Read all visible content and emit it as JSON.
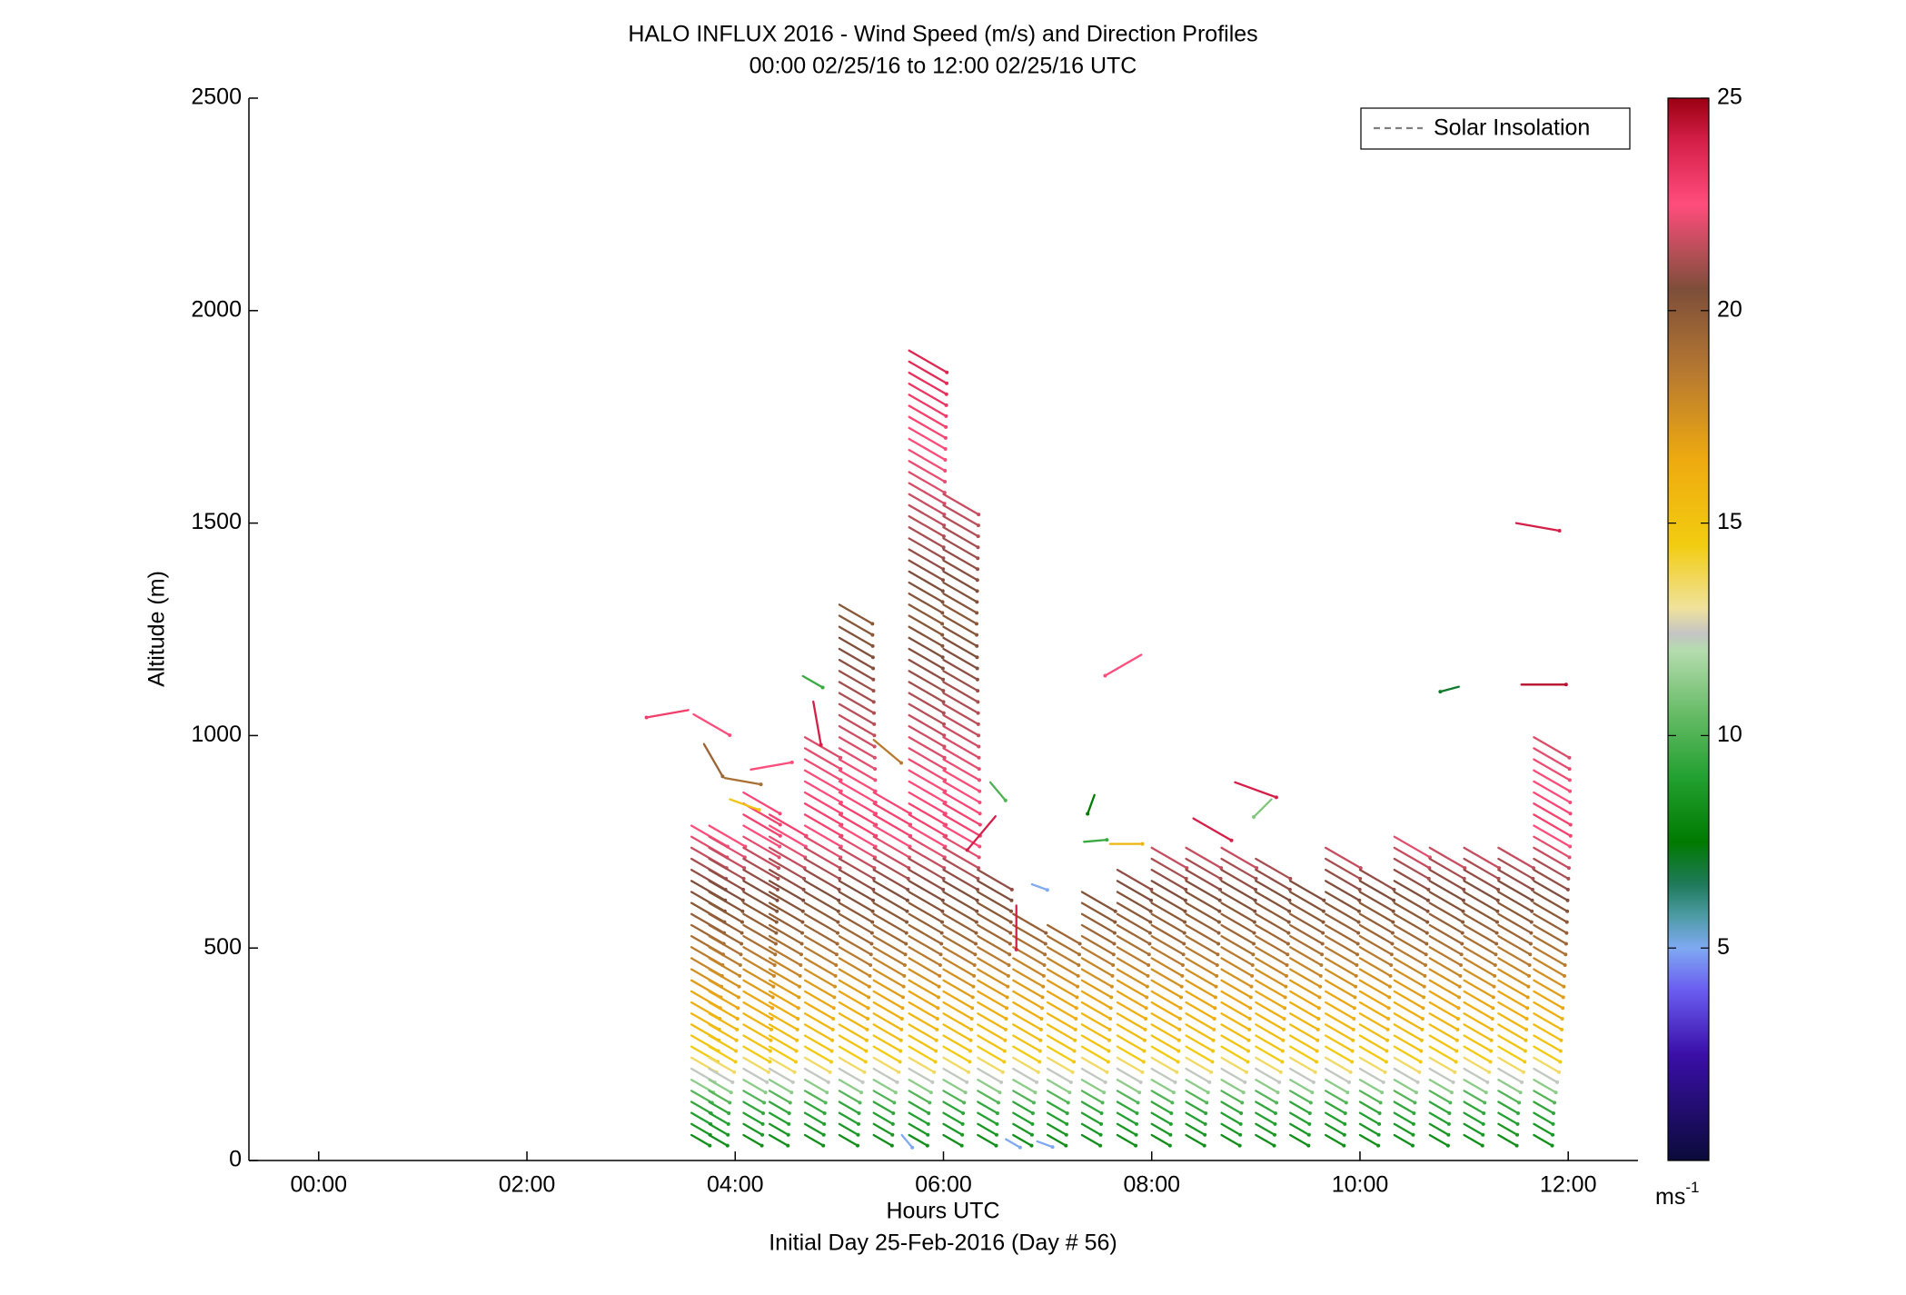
{
  "chart_data": {
    "type": "wind-profile",
    "title": "HALO INFLUX 2016 - Wind Speed (m/s) and Direction Profiles",
    "subtitle": "00:00 02/25/16 to 12:00 02/25/16  UTC",
    "xlabel": "Hours UTC",
    "xlabel2": "Initial Day 25-Feb-2016 (Day # 56)",
    "ylabel": "Altitude (m)",
    "xlim": [
      -0.67,
      12.67
    ],
    "ylim": [
      0,
      2500
    ],
    "x_ticks": [
      {
        "value": 0,
        "label": "00:00"
      },
      {
        "value": 2,
        "label": "02:00"
      },
      {
        "value": 4,
        "label": "04:00"
      },
      {
        "value": 6,
        "label": "06:00"
      },
      {
        "value": 8,
        "label": "08:00"
      },
      {
        "value": 10,
        "label": "10:00"
      },
      {
        "value": 12,
        "label": "12:00"
      }
    ],
    "y_ticks": [
      {
        "value": 0,
        "label": "0"
      },
      {
        "value": 500,
        "label": "500"
      },
      {
        "value": 1000,
        "label": "1000"
      },
      {
        "value": 1500,
        "label": "1500"
      },
      {
        "value": 2000,
        "label": "2000"
      },
      {
        "value": 2500,
        "label": "2500"
      }
    ],
    "legend": {
      "position": "top-right",
      "entries": [
        {
          "label": "Solar Insolation",
          "style": "dashed",
          "color": "#808080"
        }
      ]
    },
    "colorbar": {
      "range": [
        0,
        25
      ],
      "ticks": [
        {
          "value": 5,
          "label": "5"
        },
        {
          "value": 10,
          "label": "10"
        },
        {
          "value": 15,
          "label": "15"
        },
        {
          "value": 20,
          "label": "20"
        },
        {
          "value": 25,
          "label": "25"
        }
      ],
      "unit_label": "ms",
      "unit_exp": "-1",
      "stops": [
        {
          "v": 0,
          "c": "#0b0b3a"
        },
        {
          "v": 2.5,
          "c": "#3a0fa8"
        },
        {
          "v": 4,
          "c": "#6a5cf0"
        },
        {
          "v": 5,
          "c": "#7fa9f2"
        },
        {
          "v": 5.8,
          "c": "#4a9aa0"
        },
        {
          "v": 6.5,
          "c": "#1f7a5a"
        },
        {
          "v": 7.5,
          "c": "#007a00"
        },
        {
          "v": 9,
          "c": "#22a030"
        },
        {
          "v": 10.5,
          "c": "#66bb66"
        },
        {
          "v": 12,
          "c": "#b5dcae"
        },
        {
          "v": 12.4,
          "c": "#c4c4c4"
        },
        {
          "v": 13,
          "c": "#f0e29c"
        },
        {
          "v": 14.5,
          "c": "#f2cc10"
        },
        {
          "v": 16.5,
          "c": "#eeaa10"
        },
        {
          "v": 18.5,
          "c": "#b87a30"
        },
        {
          "v": 20.5,
          "c": "#7d4e3a"
        },
        {
          "v": 22.5,
          "c": "#ff4d7c"
        },
        {
          "v": 24,
          "c": "#d41f48"
        },
        {
          "v": 25,
          "c": "#9a0012"
        }
      ]
    },
    "wind_direction_deg": 300,
    "profile_times": [
      3.58,
      3.75,
      4.08,
      4.33,
      4.67,
      5.0,
      5.33,
      5.67,
      6.0,
      6.33,
      6.67,
      7.0,
      7.33,
      7.67,
      8.0,
      8.33,
      8.67,
      9.0,
      9.33,
      9.67,
      10.0,
      10.33,
      10.67,
      11.0,
      11.33,
      11.67
    ],
    "profile_tops": [
      790,
      800,
      870,
      830,
      1000,
      1330,
      880,
      1920,
      1580,
      700,
      590,
      560,
      650,
      700,
      760,
      740,
      740,
      720,
      660,
      740,
      700,
      780,
      740,
      740,
      740,
      1000
    ],
    "speed_profile": [
      {
        "z": 0,
        "s": 7.5
      },
      {
        "z": 150,
        "s": 9.5
      },
      {
        "z": 220,
        "s": 12.5
      },
      {
        "z": 260,
        "s": 14.5
      },
      {
        "z": 420,
        "s": 17
      },
      {
        "z": 560,
        "s": 19.5
      },
      {
        "z": 700,
        "s": 21
      },
      {
        "z": 820,
        "s": 23
      },
      {
        "z": 1300,
        "s": 20
      },
      {
        "z": 1950,
        "s": 24
      }
    ],
    "extra_vectors": [
      {
        "t": 3.55,
        "z": 1060,
        "s": 23,
        "d": 80
      },
      {
        "t": 3.6,
        "z": 1050,
        "s": 22.5,
        "d": 300
      },
      {
        "t": 3.7,
        "z": 980,
        "s": 19.5,
        "d": 330
      },
      {
        "t": 3.9,
        "z": 900,
        "s": 19,
        "d": 280
      },
      {
        "t": 4.15,
        "z": 920,
        "s": 22.5,
        "d": 260
      },
      {
        "t": 3.95,
        "z": 850,
        "s": 15,
        "d": 290
      },
      {
        "t": 4.65,
        "z": 1140,
        "s": 9.5,
        "d": 300
      },
      {
        "t": 4.75,
        "z": 1080,
        "s": 24,
        "d": 350
      },
      {
        "t": 5.33,
        "z": 990,
        "s": 18.5,
        "d": 310
      },
      {
        "t": 6.45,
        "z": 890,
        "s": 10,
        "d": 320
      },
      {
        "t": 6.5,
        "z": 810,
        "s": 24,
        "d": 40
      },
      {
        "t": 6.85,
        "z": 650,
        "s": 5,
        "d": 290
      },
      {
        "t": 6.7,
        "z": 600,
        "s": 24,
        "d": 0
      },
      {
        "t": 7.35,
        "z": 750,
        "s": 9.5,
        "d": 265
      },
      {
        "t": 7.6,
        "z": 745,
        "s": 16,
        "d": 270
      },
      {
        "t": 7.45,
        "z": 860,
        "s": 7.5,
        "d": 20
      },
      {
        "t": 7.9,
        "z": 1190,
        "s": 22.5,
        "d": 60
      },
      {
        "t": 8.4,
        "z": 805,
        "s": 24,
        "d": 300
      },
      {
        "t": 8.8,
        "z": 890,
        "s": 24,
        "d": 290
      },
      {
        "t": 9.15,
        "z": 850,
        "s": 11,
        "d": 45
      },
      {
        "t": 10.95,
        "z": 1115,
        "s": 7,
        "d": 75
      },
      {
        "t": 11.5,
        "z": 1500,
        "s": 24,
        "d": 280
      },
      {
        "t": 11.55,
        "z": 1120,
        "s": 24.5,
        "d": 270
      },
      {
        "t": 5.6,
        "z": 60,
        "s": 5,
        "d": 320
      },
      {
        "t": 6.6,
        "z": 50,
        "s": 5,
        "d": 300
      },
      {
        "t": 6.9,
        "z": 45,
        "s": 5,
        "d": 290
      }
    ]
  }
}
